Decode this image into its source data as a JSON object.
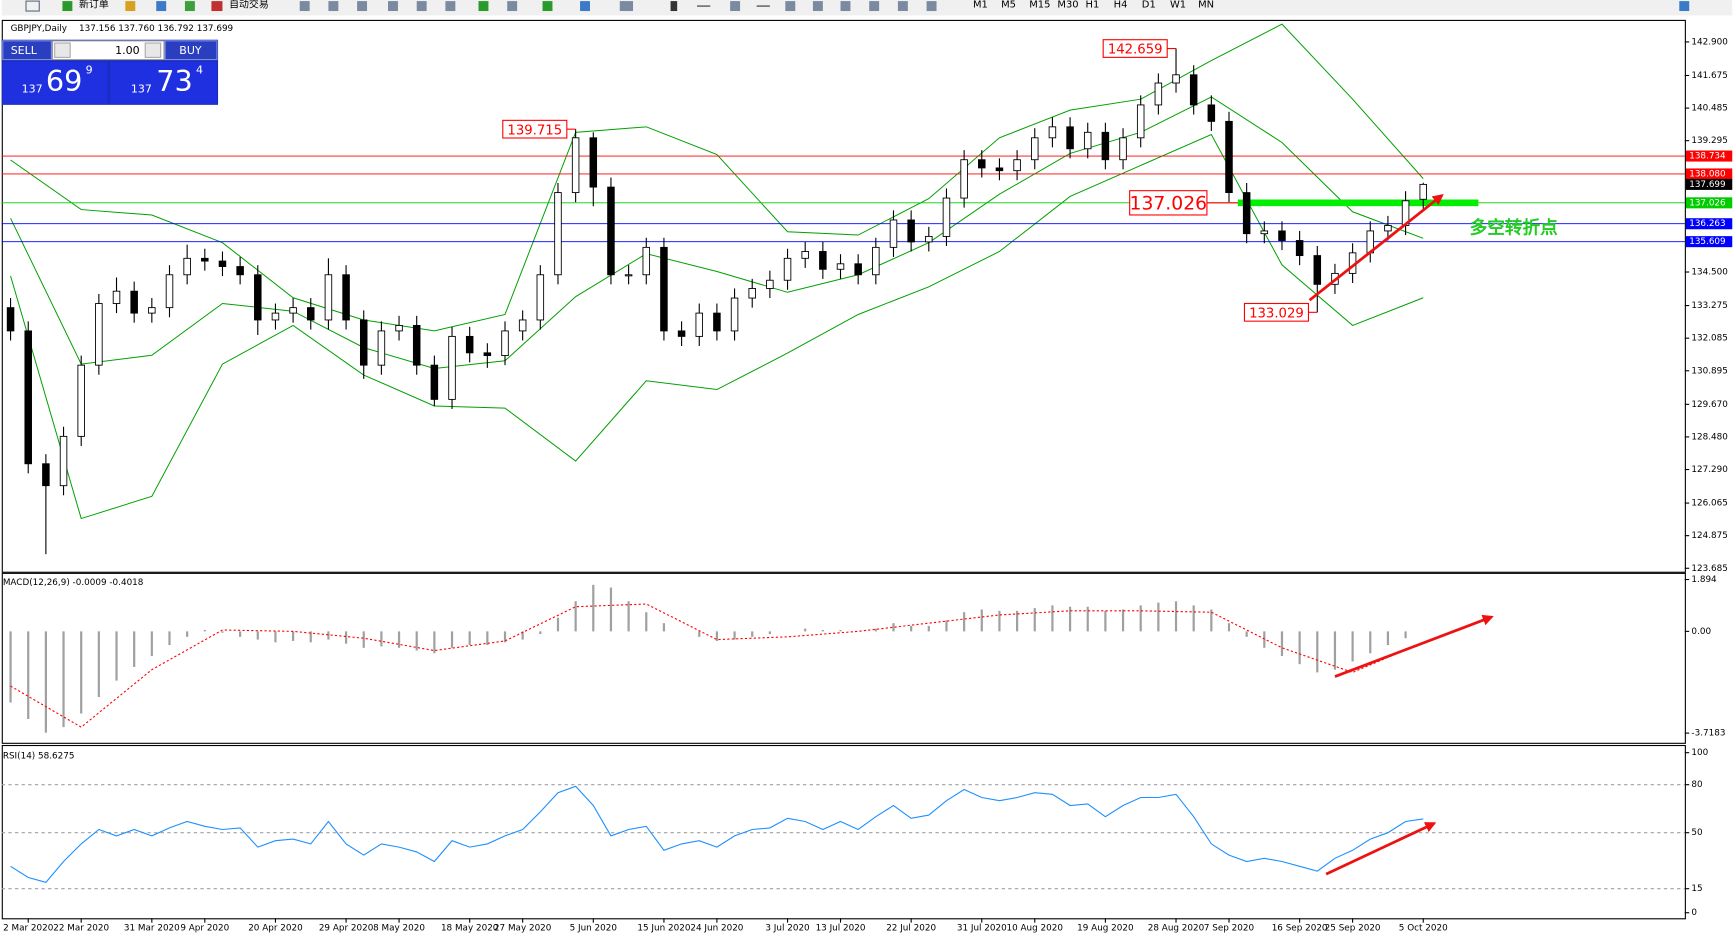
{
  "toolbar": {
    "new_order": "新订单",
    "auto_trading": "自动交易",
    "timeframes": [
      "M1",
      "M5",
      "M15",
      "M30",
      "H1",
      "H4",
      "D1",
      "W1",
      "MN"
    ]
  },
  "trade_panel": {
    "sell": "SELL",
    "lots": "1.00",
    "buy": "BUY",
    "bid": {
      "prefix": "137",
      "pips": "69",
      "fraction": "9"
    },
    "ask": {
      "prefix": "137",
      "pips": "73",
      "fraction": "4"
    }
  },
  "chart_data": [
    {
      "type": "candlestick",
      "title": "GBPJPY,Daily",
      "subtitle": "137.156 137.760 136.792 137.699",
      "categories": [
        null,
        "2 Mar 2020",
        null,
        null,
        "22 Mar 2020",
        null,
        null,
        null,
        "31 Mar 2020",
        null,
        null,
        "9 Apr 2020",
        null,
        null,
        null,
        "20 Apr 2020",
        null,
        null,
        null,
        "29 Apr 2020",
        null,
        null,
        "8 May 2020",
        null,
        null,
        null,
        "18 May 2020",
        null,
        null,
        "27 May 2020",
        null,
        null,
        null,
        "5 Jun 2020",
        null,
        null,
        null,
        "15 Jun 2020",
        null,
        null,
        "24 Jun 2020",
        null,
        null,
        null,
        "3 Jul 2020",
        null,
        null,
        "13 Jul 2020",
        null,
        null,
        null,
        "22 Jul 2020",
        null,
        null,
        null,
        "31 Jul 2020",
        null,
        null,
        "10 Aug 2020",
        null,
        null,
        null,
        "19 Aug 2020",
        null,
        null,
        null,
        "28 Aug 2020",
        null,
        null,
        "7 Sep 2020",
        null,
        null,
        null,
        "16 Sep 2020",
        null,
        null,
        "25 Sep 2020",
        null,
        null,
        null,
        "5 Oct 2020"
      ],
      "open": [
        133.2,
        132.35,
        127.5,
        126.7,
        128.5,
        131.1,
        133.35,
        133.8,
        133.0,
        133.2,
        134.4,
        135.0,
        134.9,
        134.7,
        134.4,
        132.75,
        133.0,
        133.2,
        132.75,
        134.4,
        132.75,
        131.1,
        132.35,
        132.55,
        131.1,
        129.85,
        132.15,
        131.55,
        131.45,
        132.35,
        132.75,
        134.4,
        137.4,
        139.4,
        137.6,
        134.4,
        134.4,
        135.4,
        132.35,
        132.15,
        133.0,
        132.35,
        133.55,
        133.9,
        134.2,
        135.0,
        135.25,
        134.6,
        134.8,
        134.4,
        135.4,
        136.4,
        135.6,
        135.8,
        137.2,
        138.6,
        138.3,
        138.2,
        138.6,
        139.4,
        139.8,
        139.0,
        139.6,
        138.6,
        139.4,
        140.6,
        141.4,
        141.7,
        140.6,
        140.0,
        137.4,
        135.9,
        136.0,
        135.65,
        135.1,
        134.05,
        134.45,
        135.2,
        136.0,
        136.2,
        137.156
      ],
      "high": [
        133.55,
        132.7,
        127.85,
        128.85,
        131.45,
        133.7,
        134.3,
        134.15,
        133.55,
        134.75,
        135.5,
        135.35,
        135.25,
        135.05,
        134.75,
        133.35,
        133.55,
        133.55,
        135.0,
        134.75,
        133.1,
        132.7,
        132.9,
        132.9,
        131.45,
        132.5,
        132.5,
        131.9,
        132.7,
        133.1,
        134.75,
        137.75,
        139.715,
        139.6,
        137.95,
        134.75,
        135.75,
        135.75,
        132.7,
        133.35,
        133.35,
        133.9,
        134.25,
        134.55,
        135.35,
        135.6,
        135.6,
        135.15,
        135.15,
        135.75,
        136.75,
        136.75,
        136.15,
        137.55,
        138.95,
        138.95,
        138.65,
        138.95,
        139.75,
        140.15,
        140.15,
        139.95,
        139.95,
        139.75,
        140.95,
        141.75,
        142.659,
        142.05,
        140.95,
        140.35,
        137.75,
        136.35,
        136.35,
        136.0,
        135.45,
        134.8,
        135.55,
        136.35,
        136.55,
        137.45,
        137.76
      ],
      "low": [
        132.0,
        127.15,
        124.2,
        126.35,
        128.15,
        130.75,
        133.0,
        132.65,
        132.65,
        132.85,
        134.05,
        134.55,
        134.35,
        134.05,
        132.2,
        132.4,
        132.65,
        132.4,
        132.4,
        132.4,
        130.6,
        130.75,
        132.0,
        130.75,
        129.6,
        129.5,
        131.2,
        131.0,
        131.1,
        132.0,
        132.4,
        134.05,
        137.05,
        136.9,
        134.05,
        134.05,
        134.05,
        132.0,
        131.8,
        131.8,
        132.0,
        132.0,
        133.2,
        133.55,
        133.85,
        134.65,
        134.25,
        134.25,
        134.05,
        134.05,
        135.05,
        135.25,
        135.25,
        135.45,
        136.85,
        137.95,
        137.85,
        137.85,
        138.25,
        139.05,
        138.65,
        138.65,
        138.25,
        138.25,
        139.05,
        140.25,
        141.05,
        140.25,
        139.65,
        137.05,
        135.55,
        135.55,
        135.3,
        134.75,
        133.029,
        133.7,
        134.1,
        134.85,
        135.65,
        135.85,
        136.792
      ],
      "close": [
        132.35,
        127.5,
        126.7,
        128.5,
        131.1,
        133.35,
        133.8,
        133.0,
        133.2,
        134.4,
        135.0,
        134.9,
        134.7,
        134.4,
        132.75,
        133.0,
        133.2,
        132.75,
        134.4,
        132.75,
        131.1,
        132.35,
        132.55,
        131.1,
        129.85,
        132.15,
        131.55,
        131.45,
        132.35,
        132.75,
        134.4,
        137.4,
        139.4,
        137.6,
        134.4,
        134.4,
        135.4,
        132.35,
        132.15,
        133.0,
        132.35,
        133.55,
        133.9,
        134.2,
        135.0,
        135.25,
        134.6,
        134.8,
        134.4,
        135.4,
        136.4,
        135.6,
        135.8,
        137.2,
        138.6,
        138.3,
        138.2,
        138.6,
        139.4,
        139.8,
        139.0,
        139.6,
        138.6,
        139.4,
        140.6,
        141.4,
        141.7,
        140.6,
        140.0,
        137.4,
        135.9,
        136.0,
        135.65,
        135.1,
        134.05,
        134.45,
        135.2,
        136.0,
        136.2,
        137.1,
        137.699
      ],
      "bollinger": {
        "color": "#00a000",
        "x": [
          0,
          4,
          8,
          12,
          16,
          20,
          24,
          28,
          32,
          36,
          40,
          44,
          48,
          52,
          56,
          60,
          64,
          68,
          72,
          76,
          80
        ],
        "upper": [
          138.59,
          136.78,
          136.58,
          135.57,
          133.56,
          132.75,
          132.35,
          132.95,
          139.6,
          139.8,
          138.79,
          135.97,
          135.85,
          137.18,
          139.4,
          140.41,
          140.81,
          142.22,
          143.55,
          140.81,
          137.91
        ],
        "middle": [
          136.46,
          131.14,
          131.46,
          133.35,
          133.07,
          131.74,
          130.98,
          131.26,
          133.6,
          135.17,
          134.52,
          133.76,
          134.4,
          135.57,
          137.34,
          138.83,
          139.6,
          140.89,
          139.23,
          136.7,
          135.73
        ],
        "lower": [
          134.36,
          125.5,
          126.31,
          131.14,
          132.55,
          130.74,
          129.61,
          129.53,
          127.6,
          130.53,
          130.21,
          131.54,
          132.95,
          133.96,
          135.25,
          137.26,
          138.39,
          139.52,
          134.76,
          132.55,
          133.56
        ]
      },
      "levels": [
        {
          "value": 138.734,
          "color": "#ff0000"
        },
        {
          "value": 138.08,
          "label": "138.080",
          "color": "#ff0000"
        },
        {
          "value": 137.699,
          "color": "#000000",
          "line": false
        },
        {
          "value": 137.026,
          "color": "#00cc00",
          "thick": true
        },
        {
          "value": 136.263,
          "color": "#0000ff"
        },
        {
          "value": 135.609,
          "color": "#0000ff"
        }
      ],
      "annotations": [
        {
          "value": 142.659
        },
        {
          "value": 139.715
        },
        {
          "value": 133.029
        },
        {
          "value": 137.026,
          "size": "large"
        }
      ],
      "note": "多空转折点",
      "ylim": [
        123.56,
        143.625
      ],
      "yticks": [
        {
          "value": 142.9,
          "label": "142.900"
        },
        141.675,
        140.485,
        139.295,
        {
          "value": 134.5,
          "label": "134.500"
        },
        133.275,
        132.085,
        130.895,
        {
          "value": 129.67,
          "label": "129.670"
        },
        {
          "value": 128.48,
          "label": "128.480"
        },
        {
          "value": 127.29,
          "label": "127.290"
        },
        126.065,
        124.875,
        123.685
      ]
    },
    {
      "type": "bar",
      "title": "MACD(12,26,9) -0.0009 -0.4018",
      "color": "#a0a0a0",
      "values": [
        -2.6,
        -3.2,
        -3.7,
        -3.5,
        -3.0,
        -2.4,
        -1.8,
        -1.3,
        -0.9,
        -0.5,
        -0.2,
        0.05,
        -0.05,
        -0.2,
        -0.3,
        -0.4,
        -0.35,
        -0.4,
        -0.3,
        -0.45,
        -0.6,
        -0.55,
        -0.6,
        -0.7,
        -0.8,
        -0.6,
        -0.5,
        -0.5,
        -0.4,
        -0.3,
        -0.1,
        0.5,
        1.1,
        1.7,
        1.6,
        1.1,
        0.7,
        0.3,
        0.0,
        -0.2,
        -0.35,
        -0.3,
        -0.2,
        -0.1,
        0.0,
        0.1,
        0.05,
        0.05,
        0.0,
        0.1,
        0.3,
        0.2,
        0.2,
        0.4,
        0.7,
        0.8,
        0.75,
        0.75,
        0.85,
        0.95,
        0.9,
        0.9,
        0.75,
        0.8,
        0.95,
        1.05,
        1.1,
        0.95,
        0.8,
        0.3,
        -0.2,
        -0.6,
        -0.9,
        -1.2,
        -1.5,
        -1.4,
        -1.1,
        -0.8,
        -0.5,
        -0.25,
        -0.0009
      ],
      "signal": {
        "color": "#ff0000",
        "x": [
          0,
          4,
          8,
          12,
          16,
          20,
          24,
          28,
          32,
          36,
          40,
          44,
          48,
          52,
          56,
          60,
          64,
          68,
          72,
          76,
          80
        ],
        "values": [
          -2.0,
          -3.5,
          -1.4,
          0.05,
          0.0,
          -0.25,
          -0.7,
          -0.35,
          0.9,
          1.0,
          -0.3,
          -0.2,
          0.0,
          0.3,
          0.6,
          0.75,
          0.75,
          0.7,
          -0.6,
          -1.5,
          -0.4018
        ]
      },
      "ylim": [
        -4.03,
        2.1
      ],
      "yticks": [
        1.894,
        {
          "value": 0,
          "label": "0.00"
        },
        -3.7183
      ]
    },
    {
      "type": "line",
      "title": "RSI(14) 58.6275",
      "color": "#1e90ff",
      "values": [
        29,
        22,
        19,
        32,
        43,
        52,
        48,
        52,
        48,
        53,
        57,
        54,
        52,
        53,
        41,
        45,
        46,
        43,
        57,
        43,
        36,
        43,
        41,
        38,
        32,
        45,
        41,
        43,
        48,
        52,
        63,
        75,
        79,
        67,
        48,
        52,
        54,
        39,
        43,
        45,
        41,
        48,
        52,
        53,
        59,
        57,
        52,
        57,
        52,
        60,
        67,
        59,
        61,
        70,
        77,
        72,
        70,
        72,
        75,
        74,
        67,
        68,
        60,
        67,
        72,
        72,
        74,
        60,
        43,
        36,
        32,
        34,
        32,
        29,
        26,
        34,
        39,
        46,
        50,
        57,
        58.6275
      ],
      "levels": [
        80,
        50,
        15
      ],
      "ylim": [
        0,
        100
      ],
      "yticks": [
        100,
        80,
        50,
        15,
        0
      ]
    }
  ]
}
